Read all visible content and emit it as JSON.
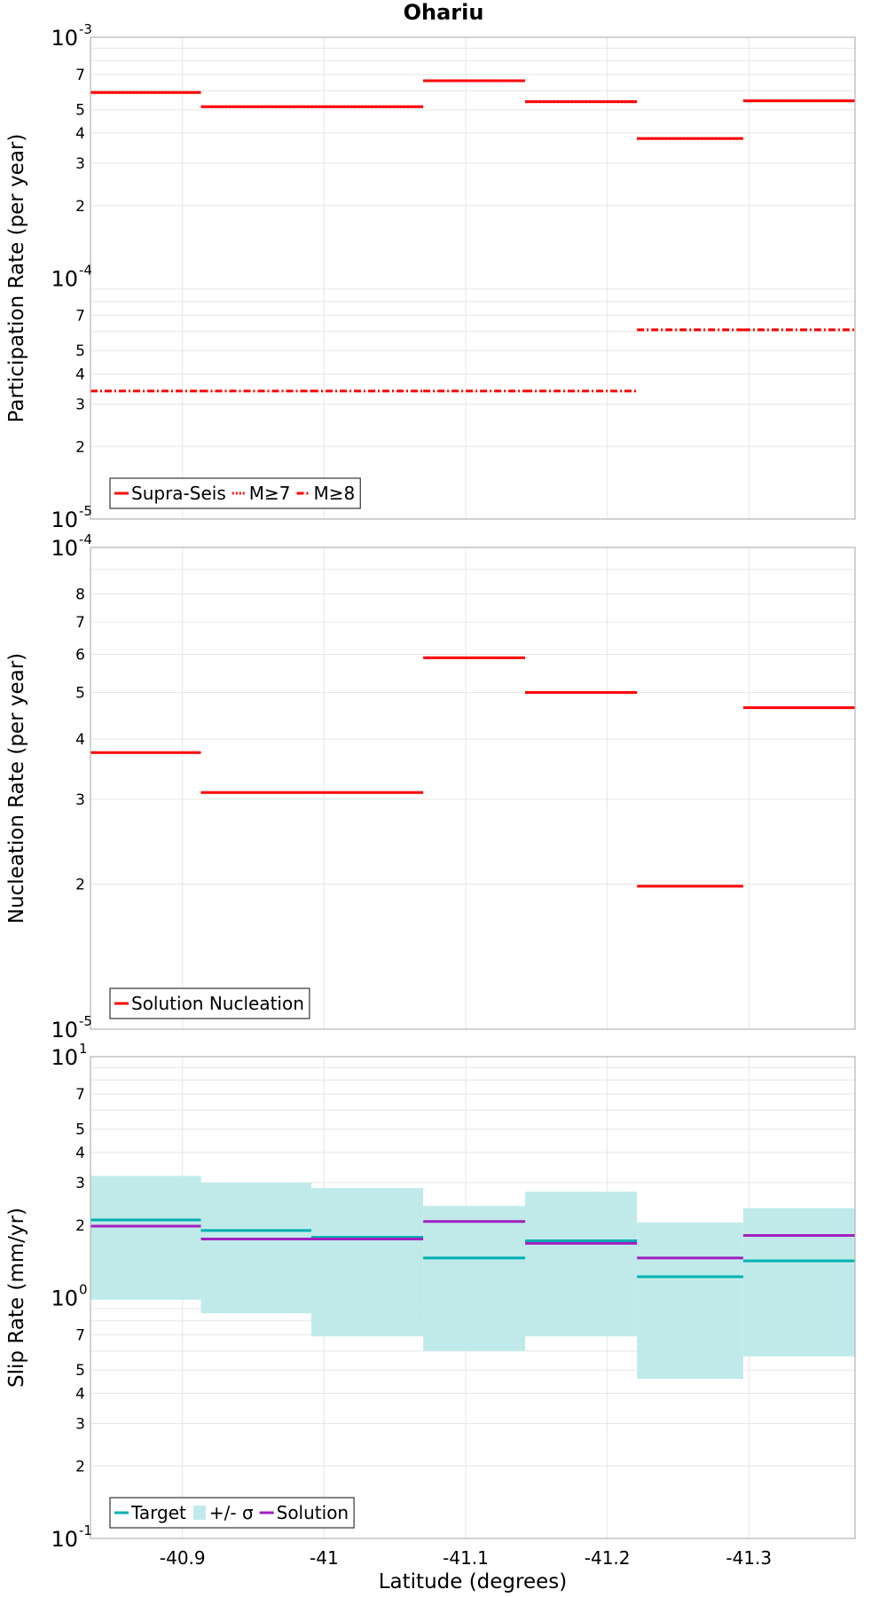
{
  "chart_data": {
    "type": "line",
    "title": "Ohariu",
    "xlabel": "Latitude (degrees)",
    "xlim": [
      -40.835,
      -41.375
    ],
    "x_ticks": [
      {
        "value": -40.9,
        "label": "-40.9"
      },
      {
        "value": -41.0,
        "label": "-41"
      },
      {
        "value": -41.1,
        "label": "-41.1"
      },
      {
        "value": -41.2,
        "label": "-41.2"
      },
      {
        "value": -41.3,
        "label": "-41.3"
      }
    ],
    "x_segments": [
      [
        -40.835,
        -40.913
      ],
      [
        -40.913,
        -40.991
      ],
      [
        -40.991,
        -41.07
      ],
      [
        -41.07,
        -41.142
      ],
      [
        -41.142,
        -41.221
      ],
      [
        -41.221,
        -41.296
      ],
      [
        -41.296,
        -41.375
      ]
    ],
    "panels": [
      {
        "id": "participation",
        "ylabel": "Participation Rate (per year)",
        "yscale": "log",
        "ylim": [
          1e-05,
          0.001
        ],
        "y_major_ticks": [
          {
            "value": 1e-05,
            "base": "10",
            "exp": "-5"
          },
          {
            "value": 0.0001,
            "base": "10",
            "exp": "-4"
          },
          {
            "value": 0.001,
            "base": "10",
            "exp": "-3"
          }
        ],
        "y_minor_ticks": [
          {
            "value": 2e-05,
            "label": "2"
          },
          {
            "value": 3e-05,
            "label": "3"
          },
          {
            "value": 4e-05,
            "label": "4"
          },
          {
            "value": 5e-05,
            "label": "5"
          },
          {
            "value": 7e-05,
            "label": "7"
          },
          {
            "value": 0.0002,
            "label": "2"
          },
          {
            "value": 0.0003,
            "label": "3"
          },
          {
            "value": 0.0004,
            "label": "4"
          },
          {
            "value": 0.0005,
            "label": "5"
          },
          {
            "value": 0.0007,
            "label": "7"
          }
        ],
        "y_grid": [
          2e-05,
          3e-05,
          4e-05,
          5e-05,
          6e-05,
          7e-05,
          8e-05,
          9e-05,
          0.0002,
          0.0003,
          0.0004,
          0.0005,
          0.0006,
          0.0007,
          0.0008,
          0.0009
        ],
        "series": [
          {
            "name": "Supra-Seis",
            "color": "#ff0000",
            "style": "solid",
            "values": [
              0.00059,
              0.000515,
              0.000515,
              0.00066,
              0.00054,
              0.00038,
              0.000545
            ]
          },
          {
            "name": "M≥7",
            "color": "#ff0000",
            "style": "dotted",
            "values": [
              0.00059,
              0.000515,
              0.000515,
              0.00066,
              0.00054,
              0.00038,
              0.000545
            ]
          },
          {
            "name": "M≥8",
            "color": "#ff0000",
            "style": "dashdot",
            "values": [
              3.4e-05,
              3.4e-05,
              3.4e-05,
              3.4e-05,
              3.4e-05,
              6.1e-05,
              6.1e-05
            ]
          }
        ],
        "legend": [
          {
            "label": "Supra-Seis",
            "style": "solid",
            "color": "#ff0000"
          },
          {
            "label": "M≥7",
            "style": "dotted",
            "color": "#ff0000"
          },
          {
            "label": "M≥8",
            "style": "dashdot",
            "color": "#ff0000"
          }
        ],
        "legend_position": "bottom-left"
      },
      {
        "id": "nucleation",
        "ylabel": "Nucleation Rate (per year)",
        "yscale": "log",
        "ylim": [
          1e-05,
          0.0001
        ],
        "y_major_ticks": [
          {
            "value": 1e-05,
            "base": "10",
            "exp": "-5"
          },
          {
            "value": 0.0001,
            "base": "10",
            "exp": "-4"
          }
        ],
        "y_minor_ticks": [
          {
            "value": 2e-05,
            "label": "2"
          },
          {
            "value": 3e-05,
            "label": "3"
          },
          {
            "value": 4e-05,
            "label": "4"
          },
          {
            "value": 5e-05,
            "label": "5"
          },
          {
            "value": 6e-05,
            "label": "6"
          },
          {
            "value": 7e-05,
            "label": "7"
          },
          {
            "value": 8e-05,
            "label": "8"
          }
        ],
        "y_grid": [
          2e-05,
          3e-05,
          4e-05,
          5e-05,
          6e-05,
          7e-05,
          8e-05,
          9e-05
        ],
        "series": [
          {
            "name": "Solution Nucleation",
            "color": "#ff0000",
            "style": "solid",
            "values": [
              3.75e-05,
              3.1e-05,
              3.1e-05,
              5.9e-05,
              5e-05,
              1.98e-05,
              4.65e-05
            ]
          }
        ],
        "legend": [
          {
            "label": "Solution Nucleation",
            "style": "solid",
            "color": "#ff0000"
          }
        ],
        "legend_position": "bottom-left"
      },
      {
        "id": "slip",
        "ylabel": "Slip Rate (mm/yr)",
        "yscale": "log",
        "ylim": [
          0.1,
          10
        ],
        "y_major_ticks": [
          {
            "value": 0.1,
            "base": "10",
            "exp": "-1"
          },
          {
            "value": 1,
            "base": "10",
            "exp": "0"
          },
          {
            "value": 10,
            "base": "10",
            "exp": "1"
          }
        ],
        "y_minor_ticks": [
          {
            "value": 0.2,
            "label": "2"
          },
          {
            "value": 0.3,
            "label": "3"
          },
          {
            "value": 0.4,
            "label": "4"
          },
          {
            "value": 0.5,
            "label": "5"
          },
          {
            "value": 0.7,
            "label": "7"
          },
          {
            "value": 2,
            "label": "2"
          },
          {
            "value": 3,
            "label": "3"
          },
          {
            "value": 4,
            "label": "4"
          },
          {
            "value": 5,
            "label": "5"
          },
          {
            "value": 7,
            "label": "7"
          }
        ],
        "y_grid": [
          0.2,
          0.3,
          0.4,
          0.5,
          0.6,
          0.7,
          0.8,
          0.9,
          2,
          3,
          4,
          5,
          6,
          7,
          8,
          9
        ],
        "band": {
          "name": "+/- σ",
          "color": "#c0eaea",
          "upper": [
            3.2,
            3.0,
            2.85,
            2.4,
            2.75,
            2.05,
            2.35
          ],
          "lower": [
            0.98,
            0.86,
            0.69,
            0.6,
            0.69,
            0.46,
            0.57
          ]
        },
        "series": [
          {
            "name": "Target",
            "color": "#00b0b0",
            "style": "solid",
            "values": [
              2.1,
              1.9,
              1.78,
              1.46,
              1.72,
              1.22,
              1.42
            ]
          },
          {
            "name": "Solution",
            "color": "#a020c0",
            "style": "solid",
            "values": [
              1.98,
              1.75,
              1.75,
              2.07,
              1.68,
              1.46,
              1.81
            ]
          }
        ],
        "legend": [
          {
            "label": "Target",
            "style": "solid",
            "color": "#00b0b0"
          },
          {
            "label": "+/- σ",
            "style": "band",
            "color": "#c0eaea"
          },
          {
            "label": "Solution",
            "style": "solid",
            "color": "#a020c0"
          }
        ],
        "legend_position": "bottom-left"
      }
    ]
  }
}
